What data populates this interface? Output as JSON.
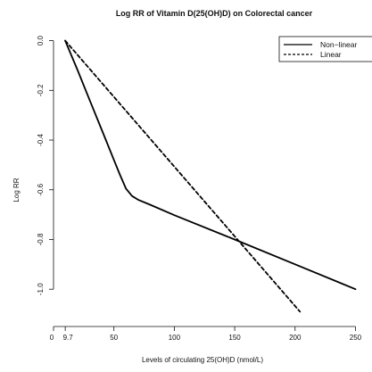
{
  "chart_data": {
    "type": "line",
    "title": "Log RR of Vitamin D(25(OH)D) on Colorectal cancer",
    "xlabel": "Levels of circulating 25(OH)D (nmol/L)",
    "ylabel": "Log RR",
    "xlim": [
      0,
      260
    ],
    "ylim": [
      -1.15,
      0.02
    ],
    "x_tick_labels": [
      "0",
      "9.7",
      "50",
      "100",
      "150",
      "200",
      "250"
    ],
    "x_ticks": [
      0,
      9.7,
      50,
      100,
      150,
      200,
      250
    ],
    "y_ticks": [
      0.0,
      -0.2,
      -0.4,
      -0.6,
      -0.8,
      -1.0
    ],
    "y_tick_labels": [
      "0.0",
      "-0.2",
      "-0.4",
      "-0.6",
      "-0.8",
      "-1.0"
    ],
    "grid": false,
    "legend_position": "top-right",
    "series": [
      {
        "name": "Non−linear",
        "style": "solid",
        "x": [
          9.7,
          20,
          30,
          40,
          50,
          55,
          60,
          65,
          70,
          80,
          100,
          150,
          200,
          250
        ],
        "y": [
          0.0,
          -0.12,
          -0.24,
          -0.36,
          -0.48,
          -0.54,
          -0.595,
          -0.625,
          -0.64,
          -0.66,
          -0.702,
          -0.8,
          -0.9,
          -1.0
        ]
      },
      {
        "name": "Linear",
        "style": "dashed",
        "x": [
          9.7,
          204
        ],
        "y": [
          0.0,
          -1.09
        ]
      }
    ]
  }
}
